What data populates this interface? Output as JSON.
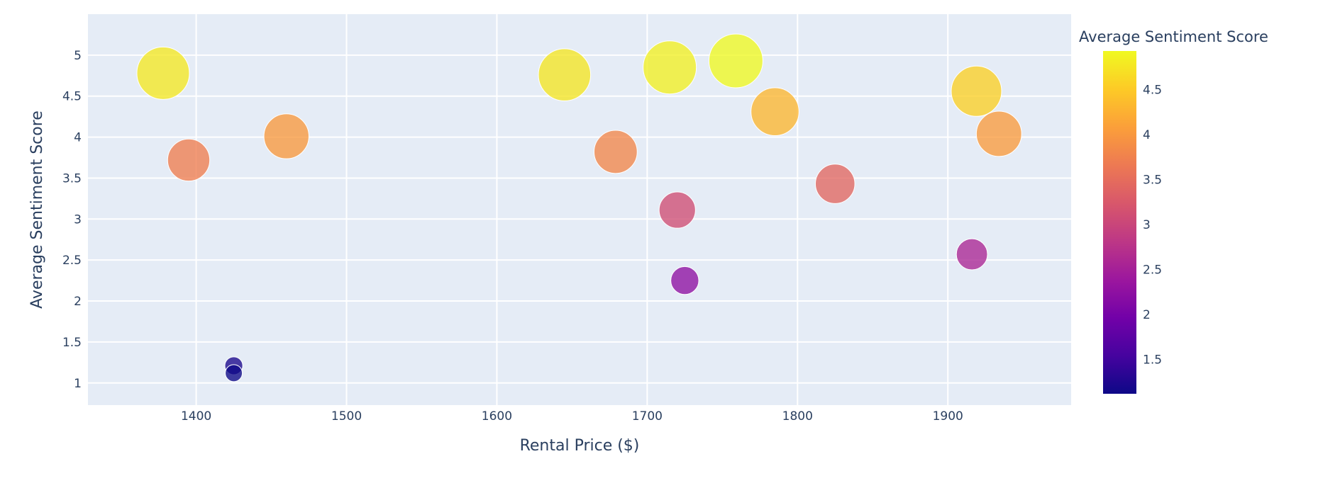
{
  "chart_data": {
    "type": "scatter",
    "title": "",
    "xlabel": "Rental Price ($)",
    "ylabel": "Average Sentiment Score",
    "xlim": [
      1328,
      1982
    ],
    "ylim": [
      0.73,
      5.5
    ],
    "xticks": [
      1400,
      1500,
      1600,
      1700,
      1800,
      1900
    ],
    "yticks": [
      1,
      1.5,
      2,
      2.5,
      3,
      3.5,
      4,
      4.5,
      5
    ],
    "grid": true,
    "bubble_size_encodes": "Average Sentiment Score",
    "colorbar": {
      "title": "Average Sentiment Score",
      "range": [
        1.12,
        4.93
      ],
      "ticks": [
        1.5,
        2,
        2.5,
        3,
        3.5,
        4,
        4.5
      ],
      "colorscale": "plasma"
    },
    "points": [
      {
        "x": 1378,
        "y": 4.78
      },
      {
        "x": 1395,
        "y": 3.72
      },
      {
        "x": 1425,
        "y": 1.21
      },
      {
        "x": 1425,
        "y": 1.12
      },
      {
        "x": 1460,
        "y": 4.01
      },
      {
        "x": 1645,
        "y": 4.76
      },
      {
        "x": 1679,
        "y": 3.82
      },
      {
        "x": 1715,
        "y": 4.85
      },
      {
        "x": 1720,
        "y": 3.11
      },
      {
        "x": 1725,
        "y": 2.25
      },
      {
        "x": 1759,
        "y": 4.93
      },
      {
        "x": 1785,
        "y": 4.31
      },
      {
        "x": 1825,
        "y": 3.43
      },
      {
        "x": 1916,
        "y": 2.57
      },
      {
        "x": 1919,
        "y": 4.56
      },
      {
        "x": 1934,
        "y": 4.04
      }
    ]
  }
}
